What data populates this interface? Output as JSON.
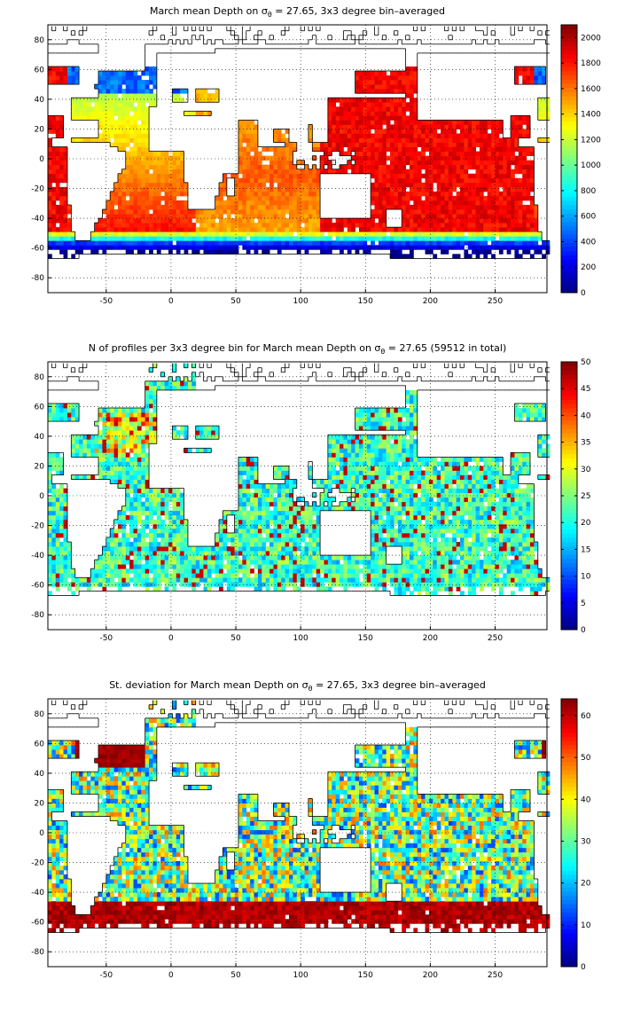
{
  "chart_data": [
    {
      "type": "heatmap",
      "title": "March mean Depth on σθ = 27.65, 3x3 degree bin–averaged",
      "title_parts": {
        "pre": "March mean Depth on σ",
        "sub": "θ",
        "post": " = 27.65, 3x3 degree bin–averaged"
      },
      "xlim": [
        -95,
        290
      ],
      "ylim": [
        -90,
        90
      ],
      "xticks": [
        -50,
        0,
        50,
        100,
        150,
        200,
        250
      ],
      "yticks": [
        80,
        60,
        40,
        20,
        0,
        -20,
        -40,
        -60,
        -80
      ],
      "grid": "dotted",
      "colorbar": {
        "min": 0,
        "max": 2100,
        "ticks": [
          2000,
          1800,
          1600,
          1400,
          1200,
          1000,
          800,
          600,
          400,
          200,
          0
        ],
        "colormap": "jet"
      },
      "field": "depth"
    },
    {
      "type": "heatmap",
      "title": "N of profiles per 3x3 degree bin for March mean Depth on σθ = 27.65 (59512 in total)",
      "title_parts": {
        "pre": "N of profiles per 3x3 degree bin for March mean Depth on σ",
        "sub": "θ",
        "post": " = 27.65 (59512 in total)"
      },
      "xlim": [
        -95,
        290
      ],
      "ylim": [
        -90,
        90
      ],
      "xticks": [
        -50,
        0,
        50,
        100,
        150,
        200,
        250
      ],
      "yticks": [
        80,
        60,
        40,
        20,
        0,
        -20,
        -40,
        -60,
        -80
      ],
      "grid": "dotted",
      "colorbar": {
        "min": 0,
        "max": 50,
        "ticks": [
          50,
          45,
          40,
          35,
          30,
          25,
          20,
          15,
          10,
          5,
          0
        ],
        "colormap": "jet"
      },
      "field": "count"
    },
    {
      "type": "heatmap",
      "title": "St. deviation for March mean Depth on σθ = 27.65, 3x3 degree bin–averaged",
      "title_parts": {
        "pre": "St. deviation for March mean Depth on σ",
        "sub": "θ",
        "post": " = 27.65, 3x3 degree bin–averaged"
      },
      "xlim": [
        -95,
        290
      ],
      "ylim": [
        -90,
        90
      ],
      "xticks": [
        -50,
        0,
        50,
        100,
        150,
        200,
        250
      ],
      "yticks": [
        80,
        60,
        40,
        20,
        0,
        -20,
        -40,
        -60,
        -80
      ],
      "grid": "dotted",
      "colorbar": {
        "min": 0,
        "max": 64,
        "ticks": [
          60,
          50,
          40,
          30,
          20,
          10,
          0
        ],
        "colormap": "jet"
      },
      "field": "std"
    }
  ]
}
